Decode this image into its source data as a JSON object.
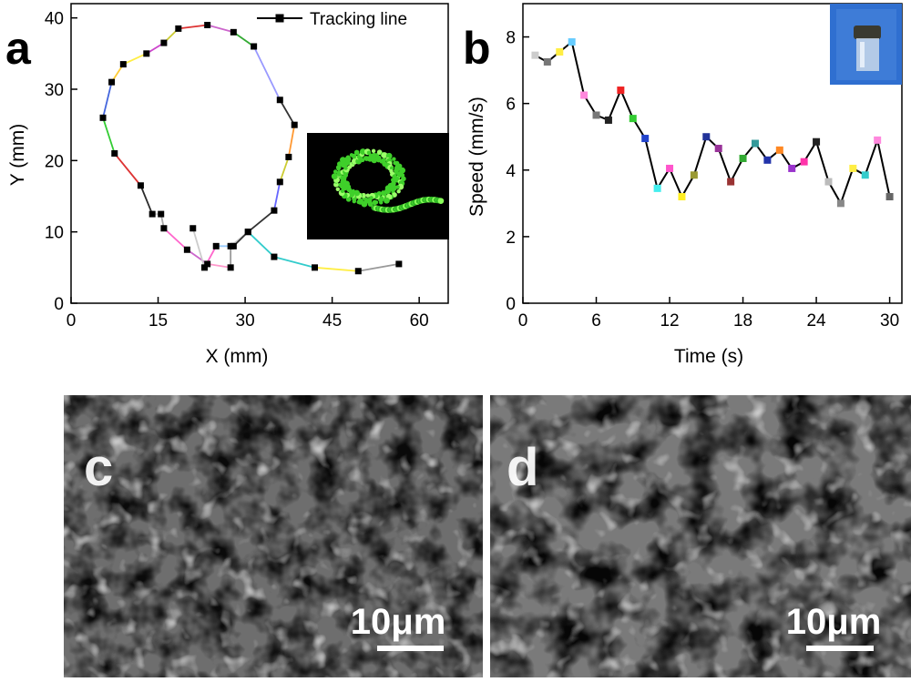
{
  "panels": {
    "a": "a",
    "b": "b",
    "c": "c",
    "d": "d"
  },
  "chart_data": [
    {
      "type": "scatter",
      "panel": "a",
      "xlabel": "X (mm)",
      "ylabel": "Y (mm)",
      "xlim": [
        0,
        65
      ],
      "ylim": [
        0,
        42
      ],
      "xticks": [
        0,
        15,
        30,
        45,
        60
      ],
      "yticks": [
        0,
        10,
        20,
        30,
        40
      ],
      "legend": {
        "label": "Tracking line",
        "placement": "top-right"
      },
      "inset": "fluorescence-image",
      "x": [
        56.5,
        49.5,
        42,
        35,
        30.5,
        27.5,
        27.5,
        23.5,
        20,
        16,
        15.5,
        14,
        12,
        7.5,
        5.5,
        7,
        9,
        13,
        16,
        18.5,
        23.5,
        28,
        31.5,
        36,
        38.5,
        37.5,
        36,
        35,
        30.5,
        28,
        25,
        23,
        21
      ],
      "y": [
        5.5,
        4.5,
        5,
        6.5,
        10,
        8,
        5,
        5.5,
        7.5,
        10.5,
        12.5,
        12.5,
        16.5,
        21,
        26,
        31,
        33.5,
        35,
        36.5,
        38.5,
        39,
        38,
        36,
        28.5,
        25,
        20.5,
        17,
        13,
        10,
        8,
        8,
        5,
        10.5
      ],
      "segment_colors": [
        "#999999",
        "#ffee44",
        "#33cccc",
        "#33cccc",
        "#cccccc",
        "#999999",
        "#ff99cc",
        "#cc66cc",
        "#ff66cc",
        "#aaaaaa",
        "#cccccc",
        "#2b2b2b",
        "#dd3333",
        "#33cc33",
        "#4466dd",
        "#ffcc33",
        "#ffee44",
        "#cc44cc",
        "#cccc33",
        "#dd3333",
        "#cc66cc",
        "#33aa33",
        "#9999ff",
        "#333333",
        "#ff9933",
        "#cccc33",
        "#6666ff",
        "#333333",
        "#333333",
        "#99ccff",
        "#ff66cc",
        "#cccccc"
      ]
    },
    {
      "type": "line",
      "panel": "b",
      "xlabel": "Time (s)",
      "ylabel": "Speed (mm/s)",
      "xlim": [
        0,
        31
      ],
      "ylim": [
        0,
        9
      ],
      "xticks": [
        0,
        6,
        12,
        18,
        24,
        30
      ],
      "yticks": [
        0,
        2,
        4,
        6,
        8
      ],
      "inset": "photo-of-vial",
      "x": [
        1,
        2,
        3,
        4,
        5,
        6,
        7,
        8,
        9,
        10,
        11,
        12,
        13,
        14,
        15,
        16,
        17,
        18,
        19,
        20,
        21,
        22,
        23,
        24,
        25,
        26,
        27,
        28,
        29,
        30
      ],
      "y": [
        7.45,
        7.25,
        7.55,
        7.85,
        6.25,
        5.65,
        5.5,
        6.4,
        5.55,
        4.95,
        3.45,
        4.05,
        3.2,
        3.85,
        5.0,
        4.65,
        3.65,
        4.35,
        4.8,
        4.3,
        4.6,
        4.05,
        4.25,
        4.85,
        3.65,
        3.0,
        4.05,
        3.85,
        4.9,
        3.2
      ],
      "point_colors": [
        "#cccccc",
        "#777777",
        "#ffee44",
        "#66ccff",
        "#ff88dd",
        "#777777",
        "#222222",
        "#ee2222",
        "#33cc33",
        "#2244cc",
        "#44eeee",
        "#ff55cc",
        "#ffee22",
        "#999933",
        "#223399",
        "#993399",
        "#993333",
        "#33aa33",
        "#339999",
        "#2233aa",
        "#ff8822",
        "#9933cc",
        "#ff33aa",
        "#222222",
        "#bbbbbb",
        "#888888",
        "#ffee44",
        "#33cccc",
        "#ff88dd",
        "#666666"
      ]
    }
  ],
  "sem": {
    "c": {
      "scale_label": "10μm"
    },
    "d": {
      "scale_label": "10μm"
    }
  }
}
